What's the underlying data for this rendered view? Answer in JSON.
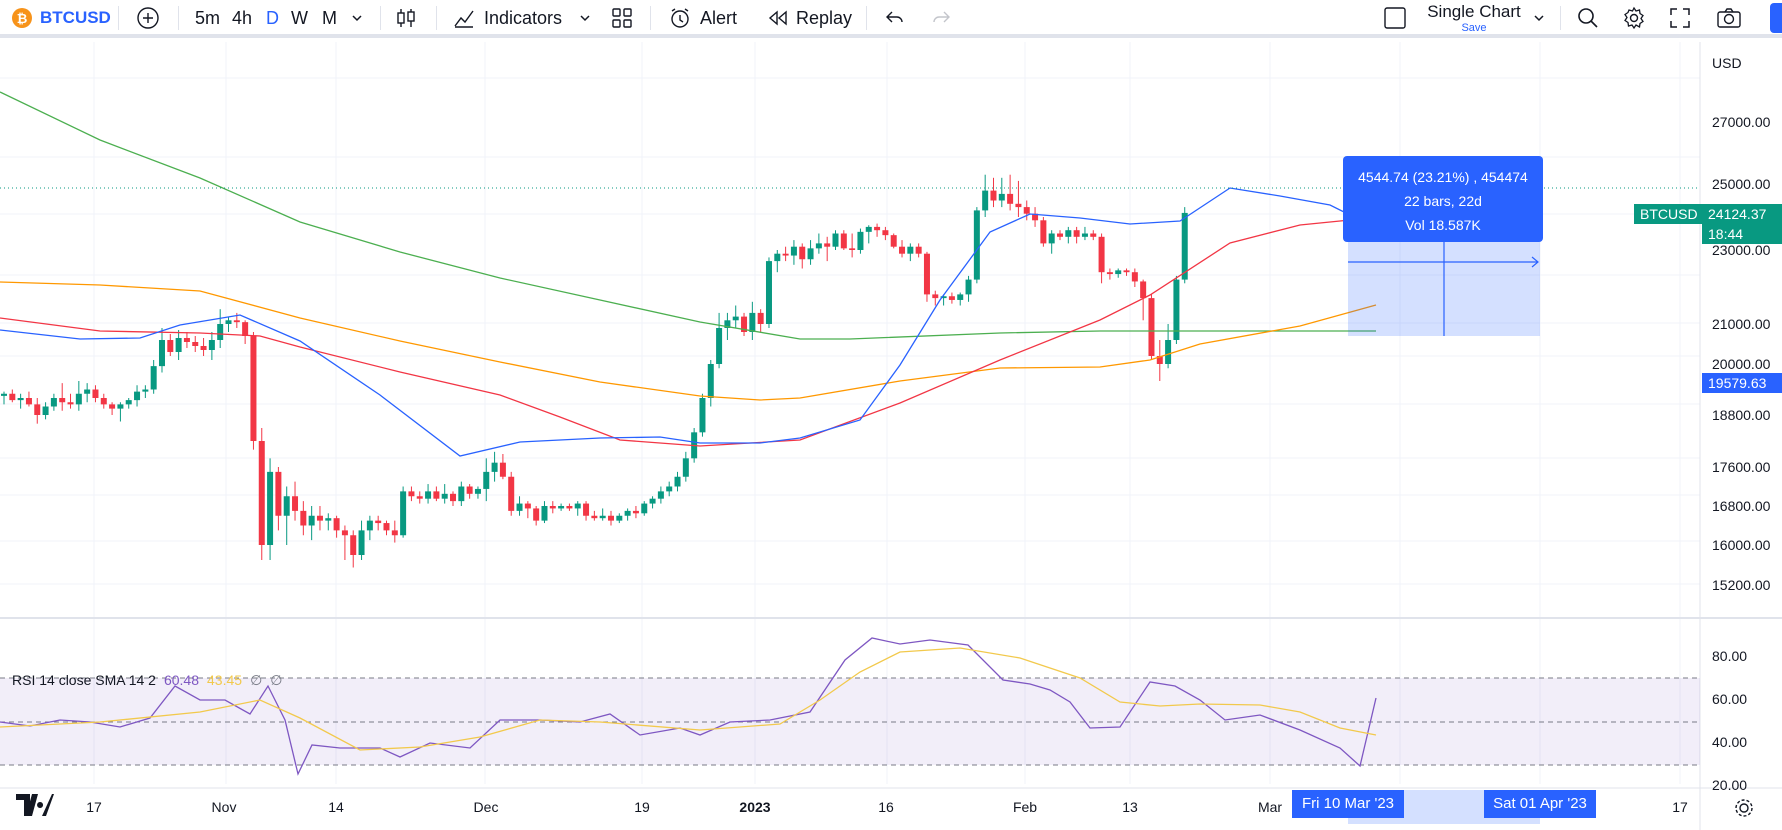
{
  "toolbar": {
    "symbol": "BTCUSD",
    "symbol_icon_glyph": "₿",
    "intervals": [
      "5m",
      "4h",
      "D",
      "W",
      "M"
    ],
    "active_interval": "D",
    "indicators_label": "Indicators",
    "alert_label": "Alert",
    "replay_label": "Replay",
    "layout_label": "Single Chart",
    "layout_save": "Save",
    "icons": [
      "add-symbol-icon",
      "interval-dropdown-icon",
      "candles-icon",
      "indicators-icon",
      "indicators-dropdown-icon",
      "templates-icon",
      "alert-icon",
      "replay-icon",
      "undo-icon",
      "redo-icon",
      "layout-square-icon",
      "layout-dropdown-icon",
      "search-icon",
      "settings-icon",
      "fullscreen-icon",
      "camera-icon"
    ]
  },
  "price_axis": {
    "currency": "USD",
    "labels": [
      "27000.00",
      "25000.00",
      "23000.00",
      "21000.00",
      "20000.00",
      "18800.00",
      "17600.00",
      "16800.00",
      "16000.00",
      "15200.00"
    ],
    "last_price": "24124.37",
    "countdown": "18:44",
    "range_low": "19579.63",
    "symbol_tag": "BTCUSD"
  },
  "measure_tooltip": {
    "line1": "4544.74 (23.21%) , 454474",
    "line2": "22 bars, 22d",
    "line3": "Vol 18.587K"
  },
  "rsi": {
    "legend_title": "RSI 14 close SMA 14 2",
    "rsi_value": "60.48",
    "sma_value": "43.45",
    "extra1": "∅",
    "extra2": "∅",
    "axis_labels": [
      "80.00",
      "60.00",
      "40.00",
      "20.00"
    ]
  },
  "time_axis": {
    "labels": [
      "17",
      "Nov",
      "14",
      "Dec",
      "19",
      "2023",
      "16",
      "Feb",
      "13",
      "Mar",
      "17"
    ],
    "range_start": "Fri 10 Mar '23",
    "range_end": "Sat 01 Apr '23"
  },
  "colors": {
    "up": "#089981",
    "down": "#f23645",
    "accent": "#2962ff",
    "sma_fast": "#2962ff",
    "sma_mid": "#f23645",
    "sma_slow": "#ff9800",
    "sma_long": "#4caf50",
    "rsi": "#7e57c2",
    "rsi_sma": "#f2c94c"
  }
}
